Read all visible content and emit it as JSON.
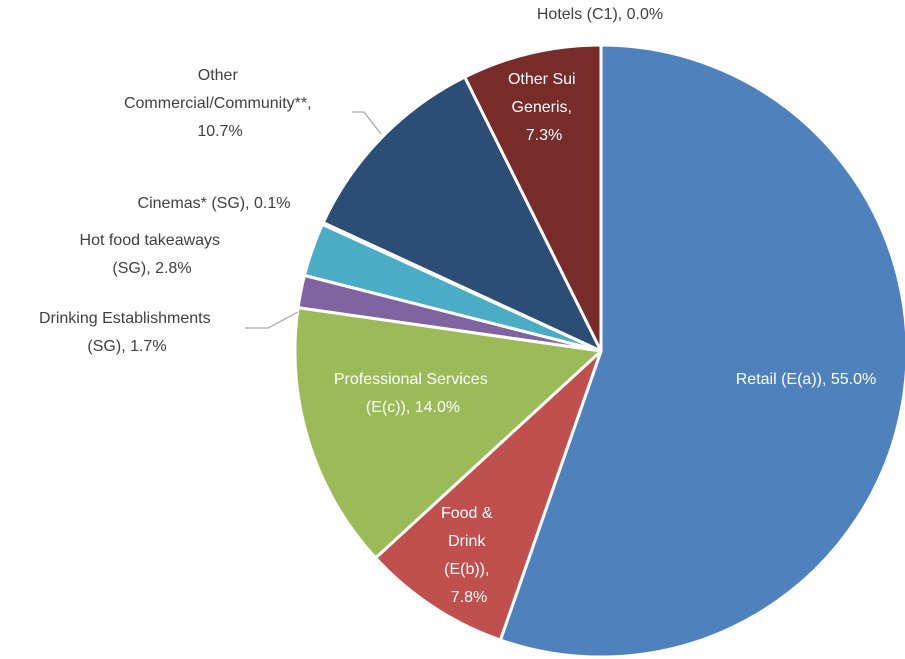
{
  "chart_data": {
    "type": "pie",
    "categories": [
      "Retail (E(a))",
      "Food & Drink (E(b))",
      "Professional Services (E(c))",
      "Drinking Establishments (SG)",
      "Hot food takeaways (SG)",
      "Cinemas* (SG)",
      "Other Commercial/Community**",
      "Other Sui Generis",
      "Hotels (C1)"
    ],
    "values": [
      55.0,
      7.8,
      14.0,
      1.7,
      2.8,
      0.1,
      10.7,
      7.3,
      0.0
    ],
    "value_labels": [
      "Retail (E(a)), 55.0%",
      "Food & Drink (E(b)), 7.8%",
      "Professional Services (E(c)), 14.0%",
      "Drinking Establishments (SG), 1.7%",
      "Hot food takeaways (SG), 2.8%",
      "Cinemas* (SG), 0.1%",
      "Other Commercial/Community**, 10.7%",
      "Other Sui Generis, 7.3%",
      "Hotels (C1), 0.0%"
    ],
    "colors": [
      "#4f81bd",
      "#c0504d",
      "#9bbb59",
      "#8064a2",
      "#4bacc6",
      "#f79646",
      "#2c4d75",
      "#772c2a",
      "#5f7530"
    ]
  }
}
